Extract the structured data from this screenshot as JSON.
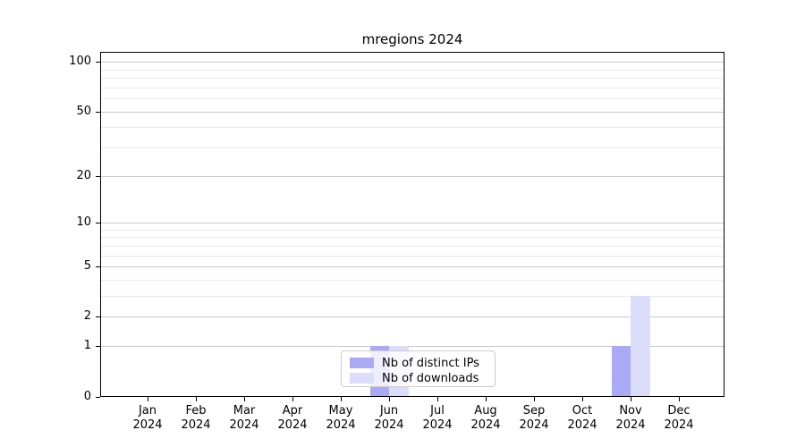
{
  "title": "mregions 2024",
  "chart_data": {
    "type": "bar",
    "title": "mregions 2024",
    "categories": [
      "Jan",
      "Feb",
      "Mar",
      "Apr",
      "May",
      "Jun",
      "Jul",
      "Aug",
      "Sep",
      "Oct",
      "Nov",
      "Dec"
    ],
    "year": "2024",
    "x_tick_labels": [
      "Jan 2024",
      "Feb 2024",
      "Mar 2024",
      "Apr 2024",
      "May 2024",
      "Jun 2024",
      "Jul 2024",
      "Aug 2024",
      "Sep 2024",
      "Oct 2024",
      "Nov 2024",
      "Dec 2024"
    ],
    "series": [
      {
        "name": "Nb of distinct IPs",
        "color": "#a9a9f4",
        "values": [
          0,
          0,
          0,
          0,
          0,
          1,
          0,
          0,
          0,
          0,
          1,
          0
        ]
      },
      {
        "name": "Nb of downloads",
        "color": "#dcdcfb",
        "values": [
          0,
          0,
          0,
          0,
          0,
          1,
          0,
          0,
          0,
          0,
          3,
          0
        ]
      }
    ],
    "yscale": "log1p",
    "ylim": [
      0,
      115
    ],
    "yticks": [
      0,
      1,
      2,
      5,
      10,
      20,
      50,
      100
    ],
    "yticks_minor": [
      3,
      4,
      6,
      7,
      8,
      9,
      30,
      40,
      60,
      70,
      80,
      90
    ],
    "grid": "horizontal",
    "legend": {
      "position": "inside-bottom-center",
      "entries": [
        "Nb of distinct IPs",
        "Nb of downloads"
      ]
    },
    "colors": {
      "grid_major": "#c8c8c8",
      "grid_minor": "#e9e9e9",
      "axis": "#000000",
      "background": "#ffffff",
      "legend_border": "#cccccc"
    }
  }
}
